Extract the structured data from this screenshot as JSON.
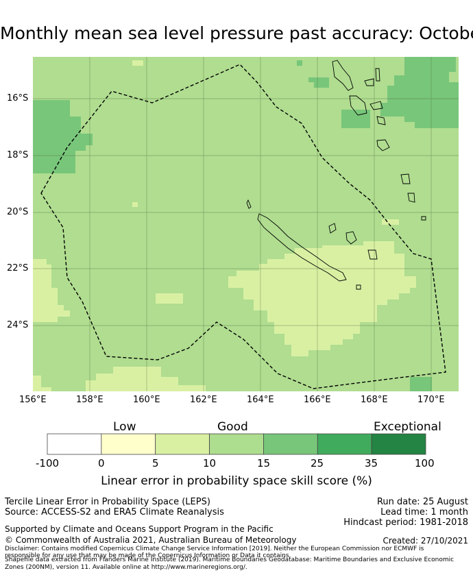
{
  "title": "Monthly mean sea level pressure past accuracy: October",
  "map": {
    "lat_labels": [
      "16°S",
      "18°S",
      "20°S",
      "22°S",
      "24°S"
    ],
    "lon_labels": [
      "156°E",
      "158°E",
      "160°E",
      "162°E",
      "164°E",
      "166°E",
      "168°E",
      "170°E"
    ],
    "colors": {
      "base": "#b0dd90",
      "darker": "#78c67a",
      "lighter": "#d9f0a3",
      "grid": "#4a6a3a",
      "eez": "#000000",
      "land": "#000000"
    }
  },
  "colorbar": {
    "categories": [
      "Low",
      "Good",
      "Exceptional"
    ],
    "ticks": [
      "-100",
      "0",
      "5",
      "10",
      "15",
      "25",
      "35",
      "100"
    ],
    "colors": [
      "#ffffff",
      "#ffffcc",
      "#d9f0a3",
      "#addd8e",
      "#78c679",
      "#41ab5d",
      "#238443"
    ],
    "label": "Linear error in probability space skill score (%)"
  },
  "footer": {
    "method": "Tercile Linear Error in Probability Space (LEPS)",
    "source": "Source: ACCESS-S2 and ERA5 Climate Reanalysis",
    "run_date": "Run date: 25 August",
    "lead_time": "Lead time: 1 month",
    "hindcast": "Hindcast period: 1981-2018",
    "support": "Supported by Climate and Oceans Support Program in the Pacific",
    "copyright": "© Commonwealth of Australia 2021, Australian Bureau of Meteorology",
    "created": "Created: 27/10/2021",
    "disclaimer1": "Disclaimer: Contains modified Copernicus Climate Change Service Information [2019]. Neither the European Commission nor ECMWF is",
    "disclaimer2": "responsible for any use that may be made of the Copernicus Information or Data it contains.",
    "disclaimer3": "Shapefile data extracted from Flanders Marine Institute (2019). Maritime Boundaries Geodatabase: Maritime Boundaries and Exclusive Economic",
    "disclaimer4": "Zones (200NM), version 11. Available online at http://www.marineregions.org/."
  }
}
